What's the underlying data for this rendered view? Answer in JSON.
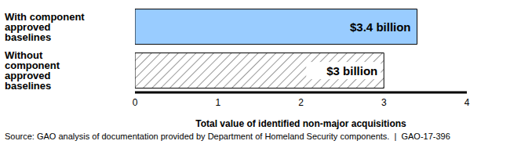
{
  "chart_data": {
    "type": "bar",
    "orientation": "horizontal",
    "categories": [
      "With component approved baselines",
      "Without component approved baselines"
    ],
    "values": [
      3.4,
      3
    ],
    "value_labels": [
      "$3.4 billion",
      "$3 billion"
    ],
    "data_labels": true,
    "colors": [
      "#99ccff",
      "#ffffff"
    ],
    "xlabel": "Total value of identified non-major acquisitions",
    "xlim": [
      0,
      4
    ],
    "xticks": [
      0,
      1,
      2,
      3,
      4
    ],
    "grid": false,
    "source": "Source: GAO analysis of documentation provided by Department of Homeland Security components.  |  GAO-17-396"
  }
}
